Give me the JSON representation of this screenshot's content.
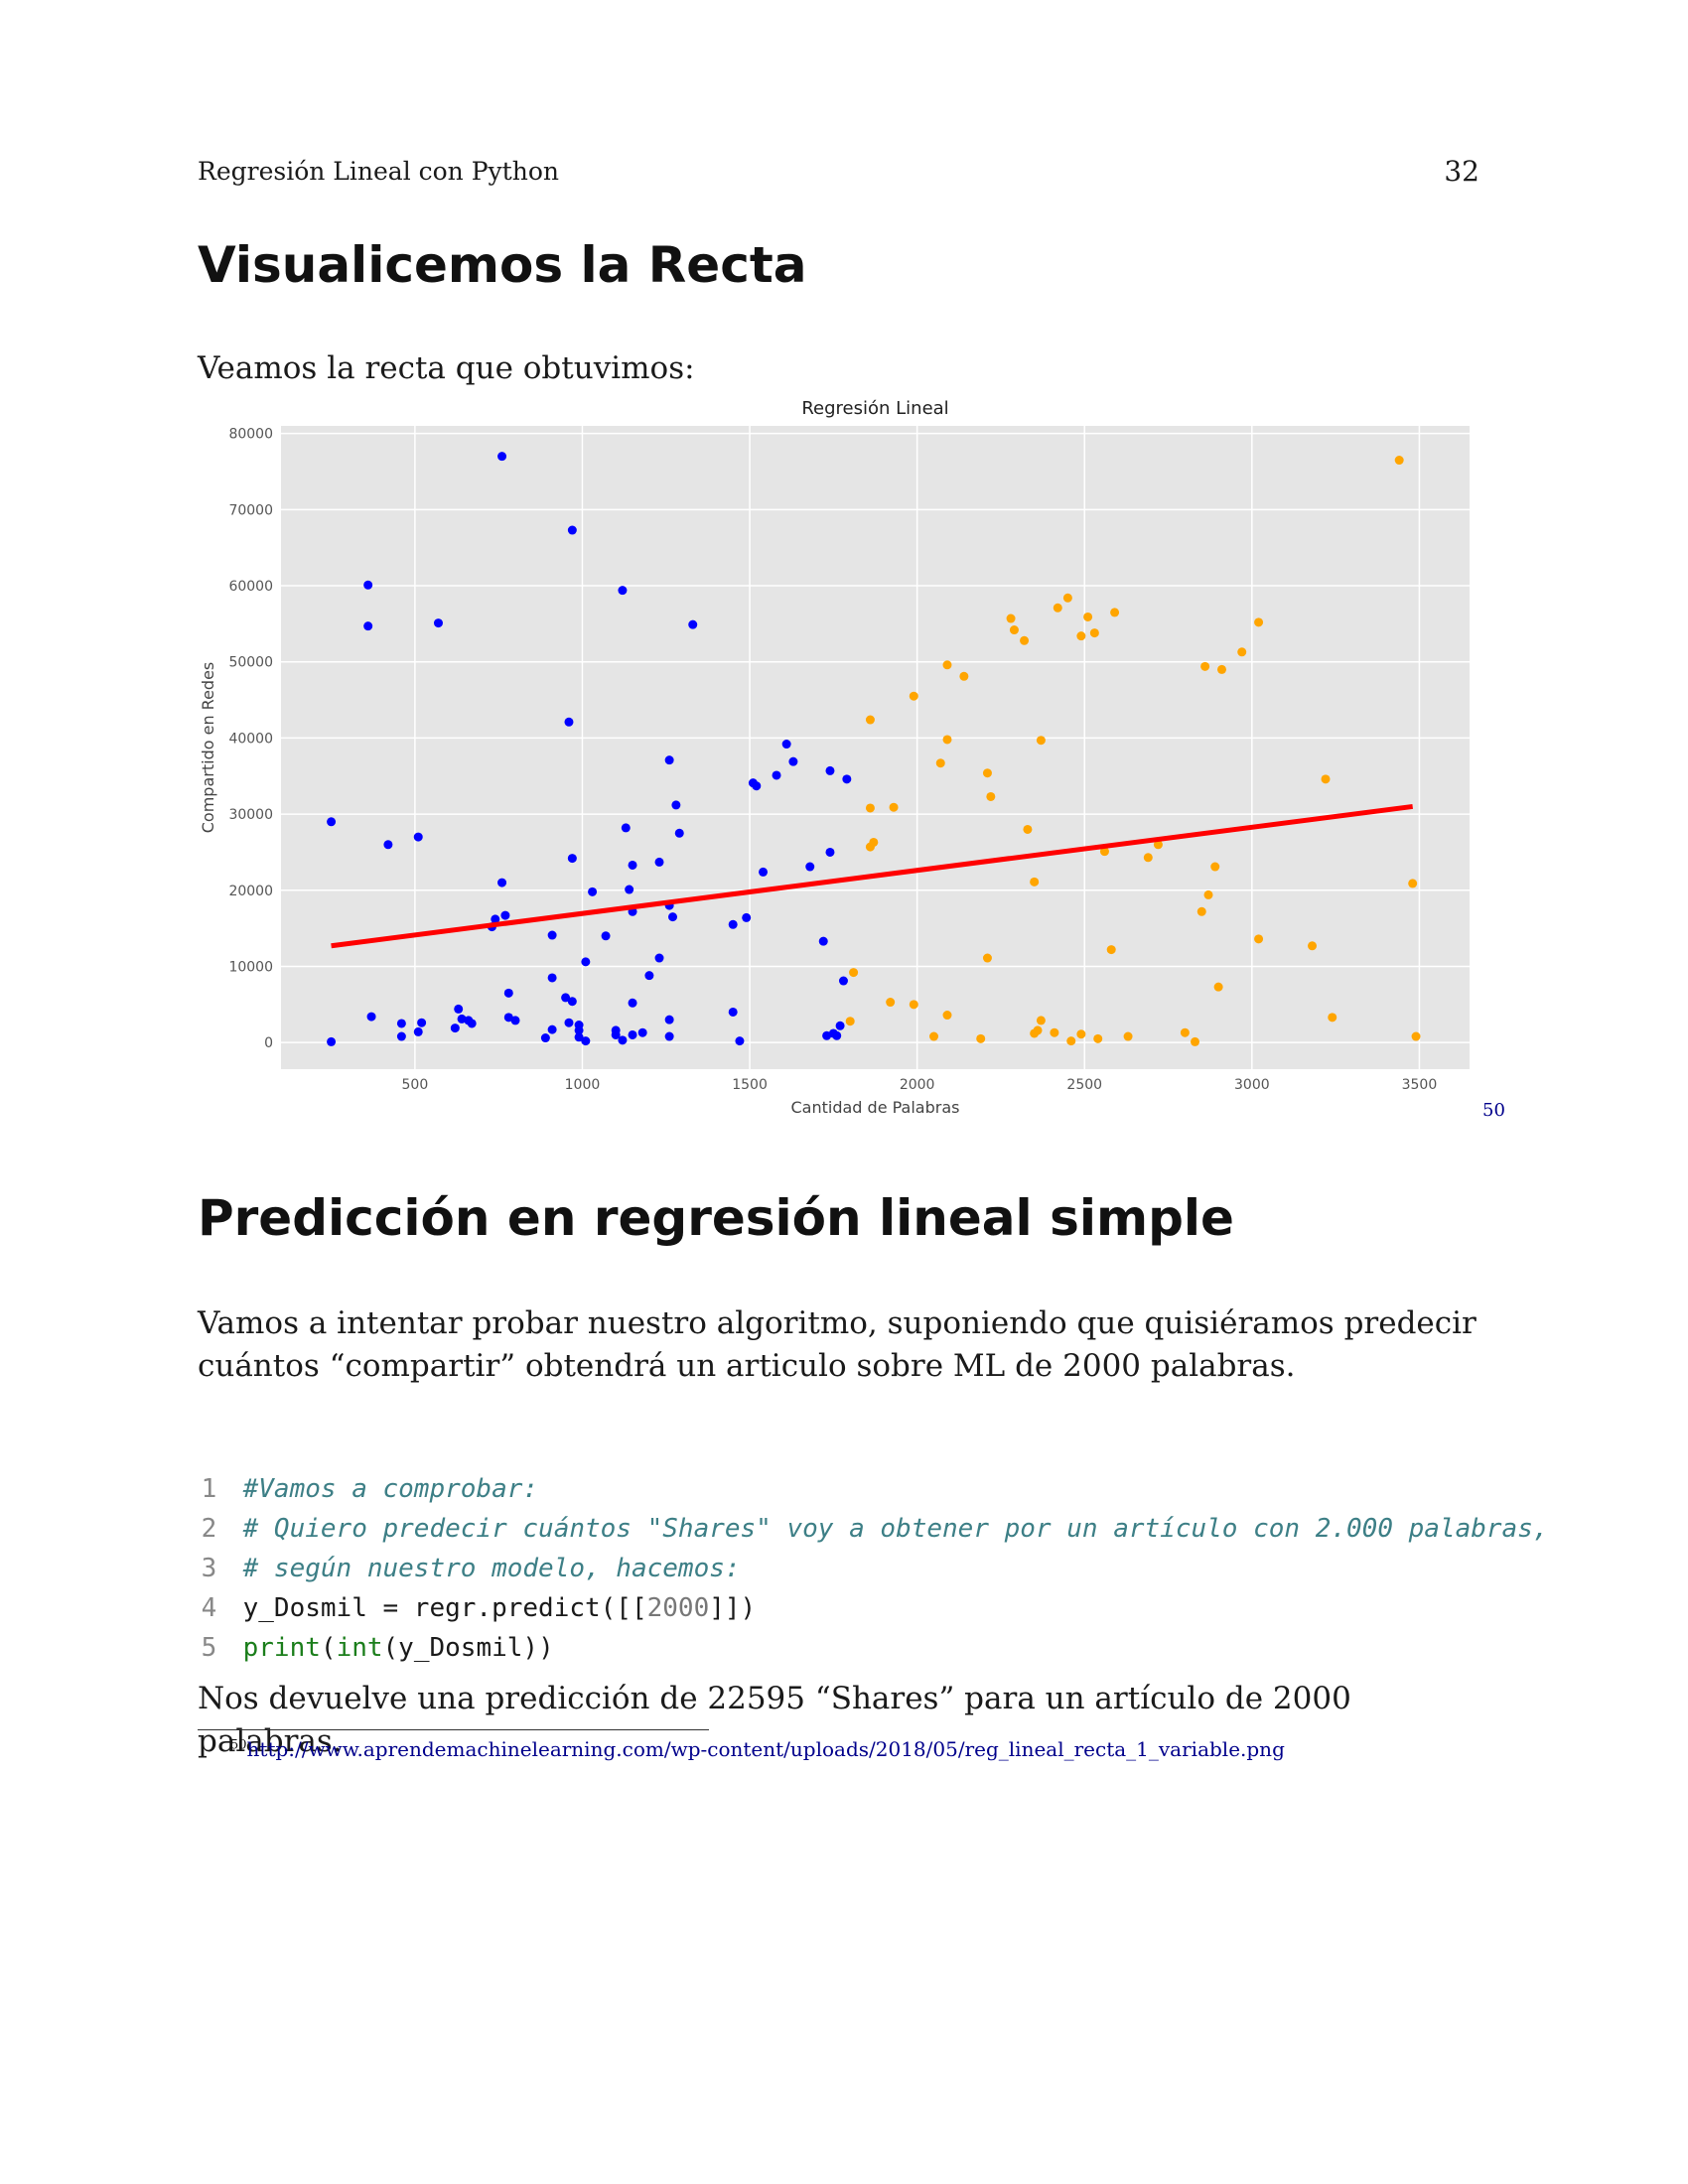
{
  "header": {
    "running_title": "Regresión Lineal con Python",
    "page_number": "32"
  },
  "section1": {
    "title": "Visualicemos la Recta",
    "intro": "Veamos la recta que obtuvimos:",
    "footnote_ref": "50"
  },
  "section2": {
    "title": "Predicción en regresión lineal simple",
    "paragraph": "Vamos a intentar probar nuestro algoritmo, suponiendo que quisiéramos predecir cuántos “compartir” obtendrá un articulo sobre ML de 2000 palabras.",
    "code": {
      "line_numbers": [
        "1",
        "2",
        "3",
        "4",
        "5"
      ],
      "line1": "#Vamos a comprobar:",
      "line2": "# Quiero predecir cuántos \"Shares\" voy a obtener por un artículo con 2.000 palabras,",
      "line3": "# según nuestro modelo, hacemos:",
      "line4_a": "y_Dosmil = regr.predict([[",
      "line4_num": "2000",
      "line4_b": "]])",
      "line5_fn1": "print",
      "line5_fn2": "int",
      "line5_rest": "(y_Dosmil))"
    },
    "result": "Nos devuelve una predicción de 22595 “Shares” para un artículo de 2000 palabras."
  },
  "footnote": {
    "number": "50",
    "url": "http://www.aprendemachinelearning.com/wp-content/uploads/2018/05/reg_lineal_recta_1_variable.png"
  },
  "chart_data": {
    "type": "scatter",
    "title": "Regresión Lineal",
    "xlabel": "Cantidad de Palabras",
    "ylabel": "Compartido en Redes",
    "xlim": [
      100,
      3650
    ],
    "ylim": [
      -3500,
      81000
    ],
    "xticks": [
      500,
      1000,
      1500,
      2000,
      2500,
      3000,
      3500
    ],
    "yticks": [
      0,
      10000,
      20000,
      30000,
      40000,
      50000,
      60000,
      70000,
      80000
    ],
    "grid": true,
    "colors": {
      "background": "#e5e5e5",
      "grid": "#ffffff",
      "blue": "#0000ff",
      "orange": "#ffa500",
      "line": "#ff0000"
    },
    "regression_line": {
      "x": [
        250,
        3480
      ],
      "y": [
        12700,
        31000
      ]
    },
    "series": [
      {
        "color": "blue",
        "points": [
          [
            760,
            77000
          ],
          [
            970,
            67300
          ],
          [
            1120,
            59400
          ],
          [
            360,
            60100
          ],
          [
            360,
            54700
          ],
          [
            570,
            55100
          ],
          [
            1330,
            54900
          ],
          [
            960,
            42100
          ],
          [
            1610,
            39200
          ],
          [
            1260,
            37100
          ],
          [
            1630,
            36900
          ],
          [
            1740,
            35700
          ],
          [
            1580,
            35100
          ],
          [
            1790,
            34600
          ],
          [
            1510,
            34100
          ],
          [
            1520,
            33700
          ],
          [
            1280,
            31200
          ],
          [
            250,
            29000
          ],
          [
            1130,
            28200
          ],
          [
            1290,
            27500
          ],
          [
            510,
            27000
          ],
          [
            420,
            26000
          ],
          [
            1740,
            25000
          ],
          [
            970,
            24200
          ],
          [
            1230,
            23700
          ],
          [
            1150,
            23300
          ],
          [
            1680,
            23100
          ],
          [
            1540,
            22400
          ],
          [
            760,
            21000
          ],
          [
            1140,
            20100
          ],
          [
            1030,
            19800
          ],
          [
            1260,
            18000
          ],
          [
            1150,
            17200
          ],
          [
            770,
            16700
          ],
          [
            1270,
            16500
          ],
          [
            1490,
            16400
          ],
          [
            740,
            16200
          ],
          [
            730,
            15200
          ],
          [
            1450,
            15500
          ],
          [
            910,
            14100
          ],
          [
            1070,
            14000
          ],
          [
            1720,
            13300
          ],
          [
            1230,
            11100
          ],
          [
            1010,
            10600
          ],
          [
            1200,
            8800
          ],
          [
            910,
            8500
          ],
          [
            1780,
            8100
          ],
          [
            780,
            6500
          ],
          [
            950,
            5900
          ],
          [
            970,
            5400
          ],
          [
            1150,
            5200
          ],
          [
            630,
            4400
          ],
          [
            1450,
            4000
          ],
          [
            370,
            3400
          ],
          [
            780,
            3300
          ],
          [
            640,
            3100
          ],
          [
            660,
            2900
          ],
          [
            800,
            2900
          ],
          [
            1260,
            3000
          ],
          [
            670,
            2500
          ],
          [
            460,
            2500
          ],
          [
            520,
            2600
          ],
          [
            960,
            2600
          ],
          [
            990,
            2300
          ],
          [
            1770,
            2200
          ],
          [
            620,
            1900
          ],
          [
            510,
            1400
          ],
          [
            990,
            1600
          ],
          [
            910,
            1700
          ],
          [
            1100,
            1600
          ],
          [
            1180,
            1300
          ],
          [
            1150,
            1000
          ],
          [
            1260,
            800
          ],
          [
            460,
            800
          ],
          [
            1750,
            1200
          ],
          [
            1100,
            1000
          ],
          [
            1760,
            900
          ],
          [
            990,
            700
          ],
          [
            1730,
            900
          ],
          [
            890,
            600
          ],
          [
            1120,
            300
          ],
          [
            1010,
            200
          ],
          [
            1470,
            200
          ],
          [
            250,
            100
          ]
        ]
      },
      {
        "color": "orange",
        "points": [
          [
            3440,
            76500
          ],
          [
            2450,
            58400
          ],
          [
            2420,
            57100
          ],
          [
            2590,
            56500
          ],
          [
            2280,
            55700
          ],
          [
            2510,
            55900
          ],
          [
            3020,
            55200
          ],
          [
            2290,
            54200
          ],
          [
            2530,
            53800
          ],
          [
            2490,
            53400
          ],
          [
            2320,
            52800
          ],
          [
            2970,
            51300
          ],
          [
            2860,
            49400
          ],
          [
            2090,
            49600
          ],
          [
            2910,
            49000
          ],
          [
            2140,
            48100
          ],
          [
            1990,
            45500
          ],
          [
            1860,
            42400
          ],
          [
            2090,
            39800
          ],
          [
            2370,
            39700
          ],
          [
            2070,
            36700
          ],
          [
            2210,
            35400
          ],
          [
            3220,
            34600
          ],
          [
            2220,
            32300
          ],
          [
            1860,
            30800
          ],
          [
            1930,
            30900
          ],
          [
            2330,
            28000
          ],
          [
            2720,
            26000
          ],
          [
            1870,
            26300
          ],
          [
            1860,
            25700
          ],
          [
            2560,
            25100
          ],
          [
            2690,
            24300
          ],
          [
            2890,
            23100
          ],
          [
            2350,
            21100
          ],
          [
            3480,
            20900
          ],
          [
            2870,
            19400
          ],
          [
            2850,
            17200
          ],
          [
            3020,
            13600
          ],
          [
            3180,
            12700
          ],
          [
            2580,
            12200
          ],
          [
            2210,
            11100
          ],
          [
            1810,
            9200
          ],
          [
            2900,
            7300
          ],
          [
            1920,
            5300
          ],
          [
            1990,
            5000
          ],
          [
            2090,
            3600
          ],
          [
            3240,
            3300
          ],
          [
            2370,
            2900
          ],
          [
            1800,
            2800
          ],
          [
            2360,
            1600
          ],
          [
            2410,
            1300
          ],
          [
            2350,
            1200
          ],
          [
            2490,
            1100
          ],
          [
            2800,
            1300
          ],
          [
            2050,
            800
          ],
          [
            2190,
            500
          ],
          [
            2540,
            500
          ],
          [
            2630,
            800
          ],
          [
            2460,
            200
          ],
          [
            2830,
            100
          ],
          [
            3490,
            800
          ]
        ]
      }
    ]
  }
}
